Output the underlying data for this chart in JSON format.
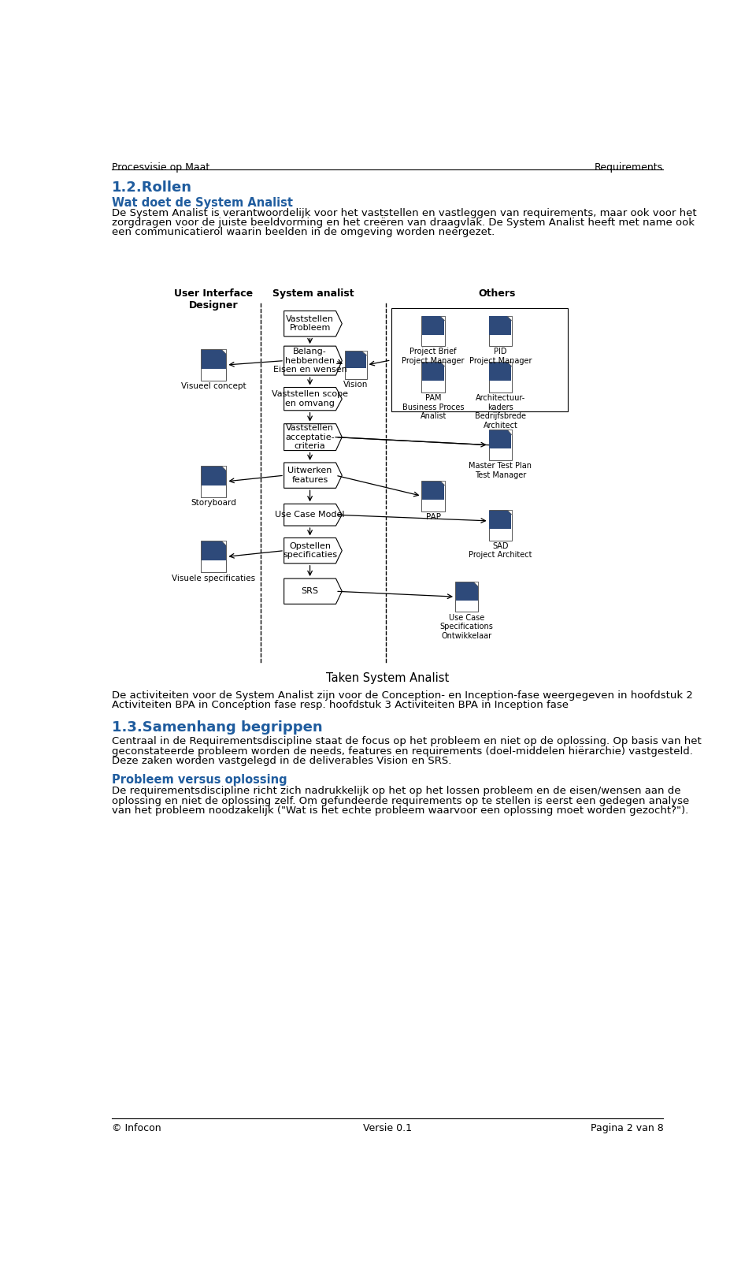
{
  "header_left": "Procesvisie op Maat",
  "header_right": "Requirements",
  "footer_left": "© Infocon",
  "footer_center": "Versie 0.1",
  "footer_right": "Pagina 2 van 8",
  "section_number": "1.2.",
  "section_title": "Rollen",
  "subsection_title": "Wat doet de System Analist",
  "paragraph1_lines": [
    "De System Analist is verantwoordelijk voor het vaststellen en vastleggen van requirements, maar ook voor het",
    "zorgdragen voor de juiste beeldvorming en het creëren van draagvlak. De System Analist heeft met name ook",
    "een communicatierol waarin beelden in de omgeving worden neergezet."
  ],
  "diagram_caption": "Taken System Analist",
  "paragraph2_lines": [
    "De activiteiten voor de System Analist zijn voor de Conception- en Inception-fase weergegeven in hoofdstuk 2",
    "Activiteiten BPA in Conception fase resp. hoofdstuk 3 Activiteiten BPA in Inception fase"
  ],
  "section2_number": "1.3.",
  "section2_title": "Samenhang begrippen",
  "paragraph3_lines": [
    "Centraal in de Requirementsdiscipline staat de focus op het probleem en niet op de oplossing. Op basis van het",
    "geconstateerde probleem worden de needs, features en requirements (doel-middelen hiërarchie) vastgesteld.",
    "Deze zaken worden vastgelegd in de deliverables Vision en SRS."
  ],
  "subsection2_title": "Probleem versus oplossing",
  "paragraph4_lines": [
    "De requirementsdiscipline richt zich nadrukkelijk op het op het lossen probleem en de eisen/wensen aan de",
    "oplossing en niet de oplossing zelf. Om gefundeerde requirements op te stellen is eerst een gedegen analyse",
    "van het probleem noodzakelijk (\"Wat is het echte probleem waarvoor een oplossing moet worden gezocht?\")."
  ],
  "blue_color": "#1F5C9E",
  "dark_blue": "#1F3864",
  "text_color": "#000000",
  "bg_color": "#ffffff",
  "diagram_col1_label": "User Interface\nDesigner",
  "diagram_col2_label": "System analist",
  "diagram_col3_label": "Others",
  "col2_boxes": [
    "Vaststellen\nProbleem",
    "Belang-\nhebbenden\nEisen en wensen",
    "Vaststellen scope\nen omvang",
    "Vaststellen\nacceptatie-\ncriteria",
    "Uitwerken\nfeatures",
    "Use Case Model",
    "Opstellen\nspecificaties",
    "SRS"
  ],
  "left_docs": [
    "Visueel concept",
    "Storyboard",
    "Visuele specificaties"
  ],
  "vision_label": "Vision",
  "col3_row1": [
    "Project Brief\nProject Manager",
    "PID\nProject Manager"
  ],
  "col3_row2": [
    "PAM\nBusiness Proces\nAnalist",
    "Architectuur-\nkaders\nBedrijfsbrede\nArchitect"
  ],
  "col3_single": [
    "Master Test Plan\nTest Manager",
    "PAP",
    "SAD\nProject Architect",
    "Use Case\nSpecifications\nOntwikkelaar"
  ]
}
